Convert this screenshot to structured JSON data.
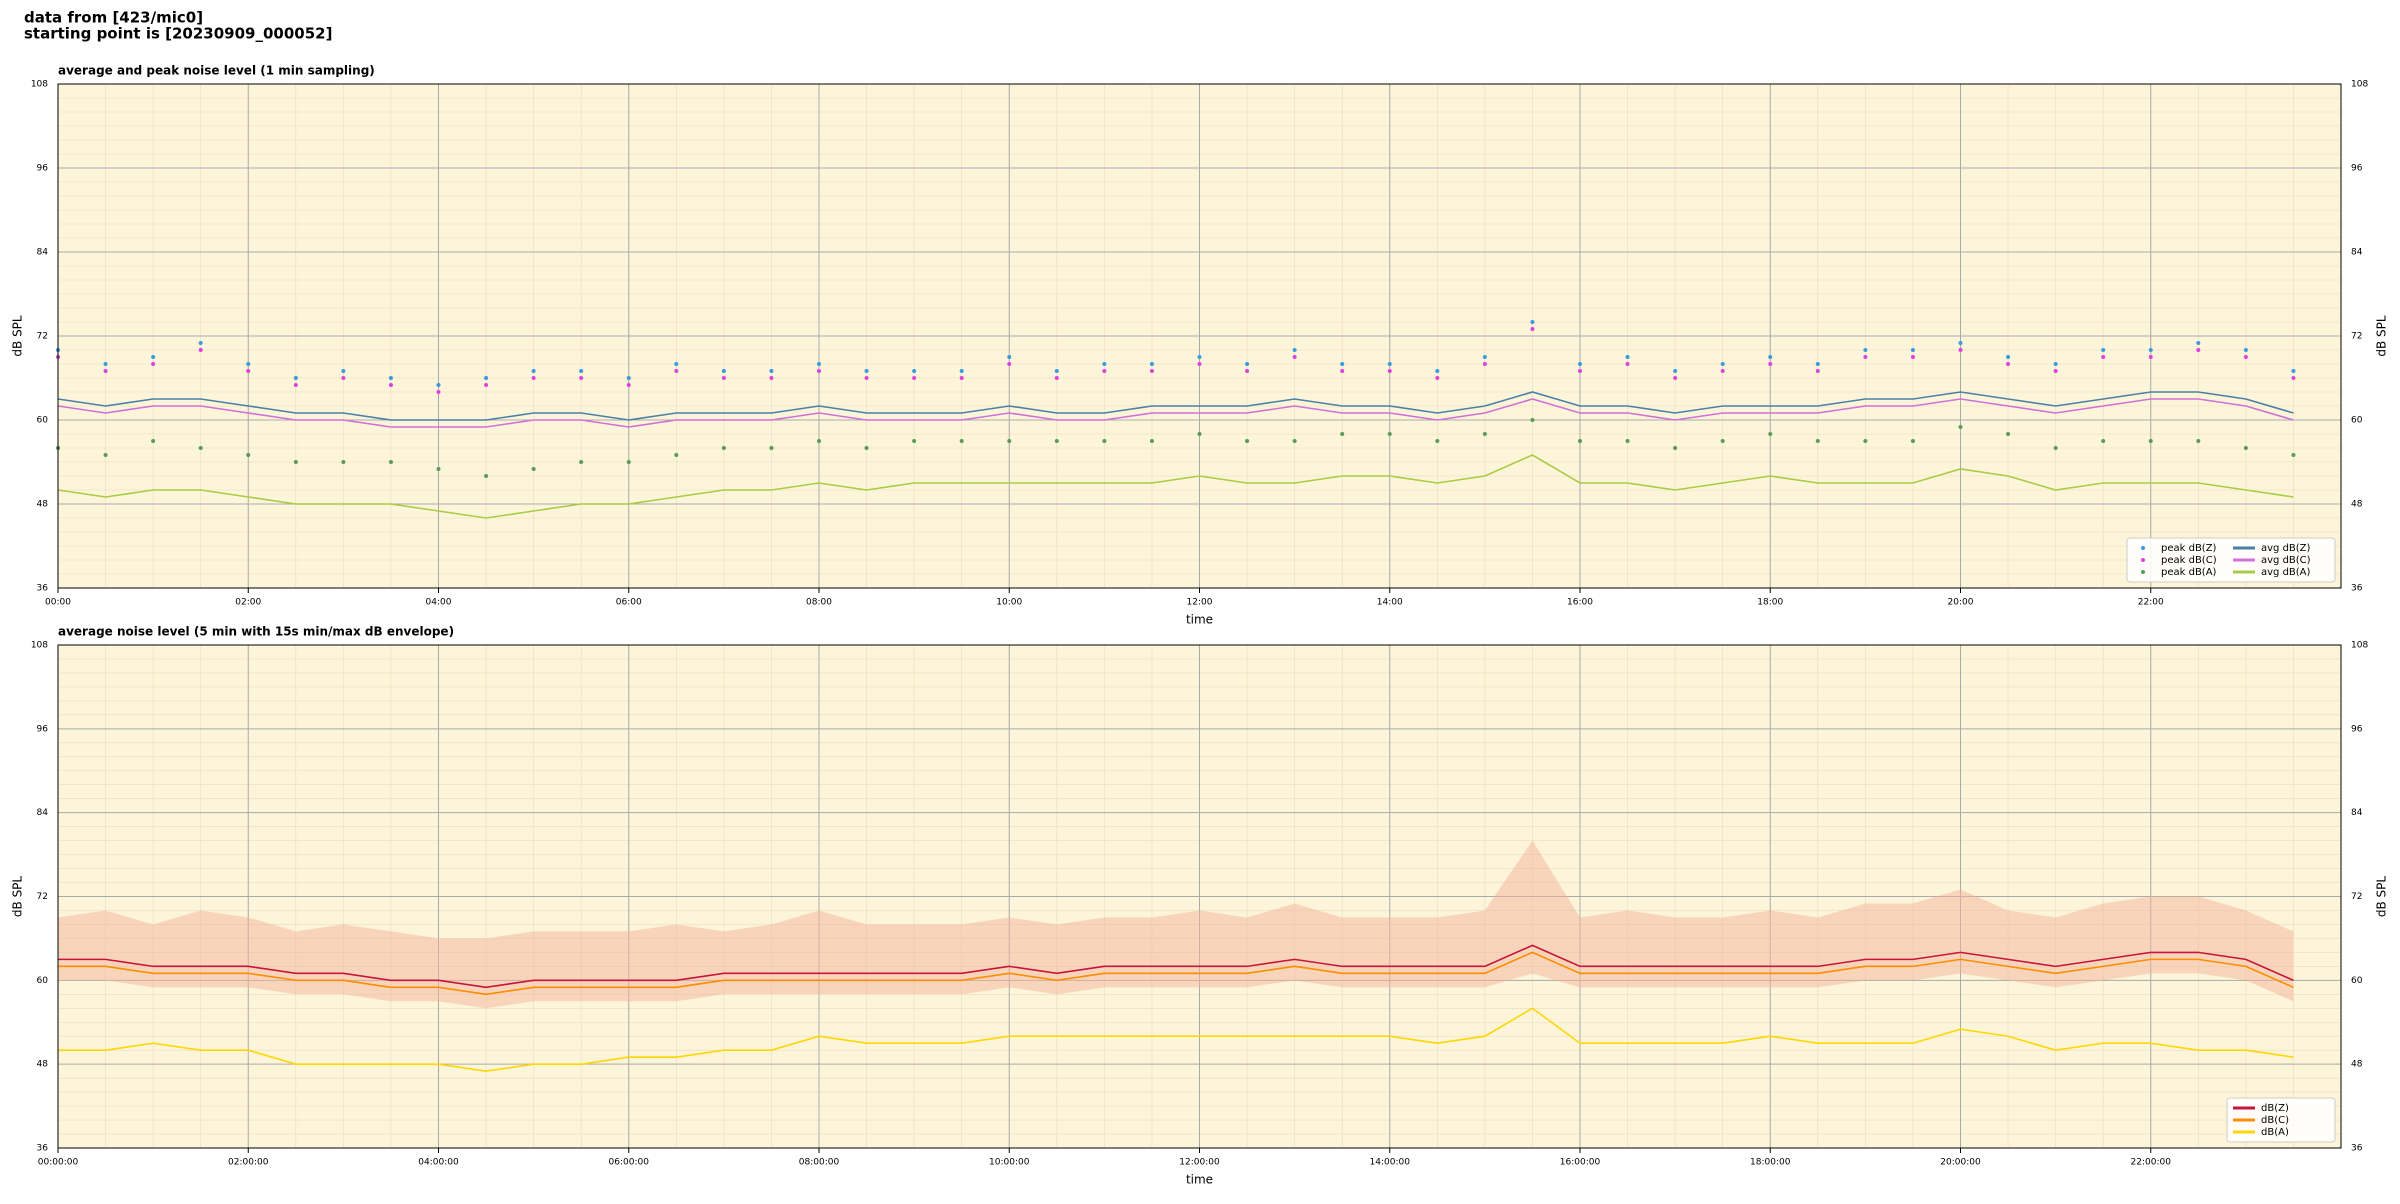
{
  "header": {
    "line1": "data from [423/mic0]",
    "line2": "starting point is [20230909_000052]"
  },
  "chart_data": [
    {
      "type": "line",
      "title": "average and peak noise level (1 min sampling)",
      "x_label": "time",
      "y_label": "dB SPL",
      "xlim": [
        "00:00",
        "24:00"
      ],
      "xticks": [
        "00:00",
        "02:00",
        "04:00",
        "06:00",
        "08:00",
        "10:00",
        "12:00",
        "14:00",
        "16:00",
        "18:00",
        "20:00",
        "22:00"
      ],
      "ylim": [
        36,
        108
      ],
      "yticks": [
        36,
        48,
        60,
        72,
        84,
        96,
        108
      ],
      "grid": true,
      "legend": "lower right",
      "x": [
        "00:00",
        "00:30",
        "01:00",
        "01:30",
        "02:00",
        "02:30",
        "03:00",
        "03:30",
        "04:00",
        "04:30",
        "05:00",
        "05:30",
        "06:00",
        "06:30",
        "07:00",
        "07:30",
        "08:00",
        "08:30",
        "09:00",
        "09:30",
        "10:00",
        "10:30",
        "11:00",
        "11:30",
        "12:00",
        "12:30",
        "13:00",
        "13:30",
        "14:00",
        "14:30",
        "15:00",
        "15:30",
        "16:00",
        "16:30",
        "17:00",
        "17:30",
        "18:00",
        "18:30",
        "19:00",
        "19:30",
        "20:00",
        "20:30",
        "21:00",
        "21:30",
        "22:00",
        "22:30",
        "23:00",
        "23:30"
      ],
      "series": [
        {
          "name": "peak dB(Z)",
          "kind": "scatter",
          "color": "#3a9be0",
          "values": [
            70,
            68,
            69,
            71,
            68,
            66,
            67,
            66,
            65,
            66,
            67,
            67,
            66,
            68,
            67,
            67,
            68,
            67,
            67,
            67,
            69,
            67,
            68,
            68,
            69,
            68,
            70,
            68,
            68,
            67,
            69,
            74,
            68,
            69,
            67,
            68,
            69,
            68,
            70,
            70,
            71,
            69,
            68,
            70,
            70,
            71,
            70,
            67
          ]
        },
        {
          "name": "peak dB(C)",
          "kind": "scatter",
          "color": "#e040e0",
          "values": [
            69,
            67,
            68,
            70,
            67,
            65,
            66,
            65,
            64,
            65,
            66,
            66,
            65,
            67,
            66,
            66,
            67,
            66,
            66,
            66,
            68,
            66,
            67,
            67,
            68,
            67,
            69,
            67,
            67,
            66,
            68,
            73,
            67,
            68,
            66,
            67,
            68,
            67,
            69,
            69,
            70,
            68,
            67,
            69,
            69,
            70,
            69,
            66
          ]
        },
        {
          "name": "peak dB(A)",
          "kind": "scatter",
          "color": "#5a9a5a",
          "values": [
            56,
            55,
            57,
            56,
            55,
            54,
            54,
            54,
            53,
            52,
            53,
            54,
            54,
            55,
            56,
            56,
            57,
            56,
            57,
            57,
            57,
            57,
            57,
            57,
            58,
            57,
            57,
            58,
            58,
            57,
            58,
            60,
            57,
            57,
            56,
            57,
            58,
            57,
            57,
            57,
            59,
            58,
            56,
            57,
            57,
            57,
            56,
            55
          ]
        },
        {
          "name": "avg dB(Z)",
          "kind": "line",
          "color": "#4a80a8",
          "values": [
            63,
            62,
            63,
            63,
            62,
            61,
            61,
            60,
            60,
            60,
            61,
            61,
            60,
            61,
            61,
            61,
            62,
            61,
            61,
            61,
            62,
            61,
            61,
            62,
            62,
            62,
            63,
            62,
            62,
            61,
            62,
            64,
            62,
            62,
            61,
            62,
            62,
            62,
            63,
            63,
            64,
            63,
            62,
            63,
            64,
            64,
            63,
            61
          ]
        },
        {
          "name": "avg dB(C)",
          "kind": "line",
          "color": "#d070d8",
          "values": [
            62,
            61,
            62,
            62,
            61,
            60,
            60,
            59,
            59,
            59,
            60,
            60,
            59,
            60,
            60,
            60,
            61,
            60,
            60,
            60,
            61,
            60,
            60,
            61,
            61,
            61,
            62,
            61,
            61,
            60,
            61,
            63,
            61,
            61,
            60,
            61,
            61,
            61,
            62,
            62,
            63,
            62,
            61,
            62,
            63,
            63,
            62,
            60
          ]
        },
        {
          "name": "avg dB(A)",
          "kind": "line",
          "color": "#a8cc44",
          "values": [
            50,
            49,
            50,
            50,
            49,
            48,
            48,
            48,
            47,
            46,
            47,
            48,
            48,
            49,
            50,
            50,
            51,
            50,
            51,
            51,
            51,
            51,
            51,
            51,
            52,
            51,
            51,
            52,
            52,
            51,
            52,
            55,
            51,
            51,
            50,
            51,
            52,
            51,
            51,
            51,
            53,
            52,
            50,
            51,
            51,
            51,
            50,
            49
          ]
        }
      ]
    },
    {
      "type": "line",
      "title": "average noise level (5 min with 15s min/max dB envelope)",
      "x_label": "time",
      "y_label": "dB SPL",
      "xlim": [
        "00:00:00",
        "24:00:00"
      ],
      "xticks": [
        "00:00:00",
        "02:00:00",
        "04:00:00",
        "06:00:00",
        "08:00:00",
        "10:00:00",
        "12:00:00",
        "14:00:00",
        "16:00:00",
        "18:00:00",
        "20:00:00",
        "22:00:00"
      ],
      "ylim": [
        36,
        108
      ],
      "yticks": [
        36,
        48,
        60,
        72,
        84,
        96,
        108
      ],
      "grid": true,
      "legend": "lower right",
      "x": [
        "00:00:00",
        "00:30:00",
        "01:00:00",
        "01:30:00",
        "02:00:00",
        "02:30:00",
        "03:00:00",
        "03:30:00",
        "04:00:00",
        "04:30:00",
        "05:00:00",
        "05:30:00",
        "06:00:00",
        "06:30:00",
        "07:00:00",
        "07:30:00",
        "08:00:00",
        "08:30:00",
        "09:00:00",
        "09:30:00",
        "10:00:00",
        "10:30:00",
        "11:00:00",
        "11:30:00",
        "12:00:00",
        "12:30:00",
        "13:00:00",
        "13:30:00",
        "14:00:00",
        "14:30:00",
        "15:00:00",
        "15:30:00",
        "16:00:00",
        "16:30:00",
        "17:00:00",
        "17:30:00",
        "18:00:00",
        "18:30:00",
        "19:00:00",
        "19:30:00",
        "20:00:00",
        "20:30:00",
        "21:00:00",
        "21:30:00",
        "22:00:00",
        "22:30:00",
        "23:00:00",
        "23:30:00"
      ],
      "envelope": {
        "color": "#f4b49c",
        "min": [
          60,
          60,
          59,
          59,
          59,
          58,
          58,
          57,
          57,
          56,
          57,
          57,
          57,
          57,
          58,
          58,
          58,
          58,
          58,
          58,
          59,
          58,
          59,
          59,
          59,
          59,
          60,
          59,
          59,
          59,
          59,
          61,
          59,
          59,
          59,
          59,
          59,
          59,
          60,
          60,
          61,
          60,
          59,
          60,
          61,
          61,
          60,
          57
        ],
        "max": [
          69,
          70,
          68,
          70,
          69,
          67,
          68,
          67,
          66,
          66,
          67,
          67,
          67,
          68,
          67,
          68,
          70,
          68,
          68,
          68,
          69,
          68,
          69,
          69,
          70,
          69,
          71,
          69,
          69,
          69,
          70,
          80,
          69,
          70,
          69,
          69,
          70,
          69,
          71,
          71,
          73,
          70,
          69,
          71,
          72,
          72,
          70,
          67
        ]
      },
      "series": [
        {
          "name": "dB(Z)",
          "kind": "line",
          "color": "#c8143c",
          "values": [
            63,
            63,
            62,
            62,
            62,
            61,
            61,
            60,
            60,
            59,
            60,
            60,
            60,
            60,
            61,
            61,
            61,
            61,
            61,
            61,
            62,
            61,
            62,
            62,
            62,
            62,
            63,
            62,
            62,
            62,
            62,
            65,
            62,
            62,
            62,
            62,
            62,
            62,
            63,
            63,
            64,
            63,
            62,
            63,
            64,
            64,
            63,
            60
          ]
        },
        {
          "name": "dB(C)",
          "kind": "line",
          "color": "#ff8c00",
          "values": [
            62,
            62,
            61,
            61,
            61,
            60,
            60,
            59,
            59,
            58,
            59,
            59,
            59,
            59,
            60,
            60,
            60,
            60,
            60,
            60,
            61,
            60,
            61,
            61,
            61,
            61,
            62,
            61,
            61,
            61,
            61,
            64,
            61,
            61,
            61,
            61,
            61,
            61,
            62,
            62,
            63,
            62,
            61,
            62,
            63,
            63,
            62,
            59
          ]
        },
        {
          "name": "dB(A)",
          "kind": "line",
          "color": "#ffd700",
          "values": [
            50,
            50,
            51,
            50,
            50,
            48,
            48,
            48,
            48,
            47,
            48,
            48,
            49,
            49,
            50,
            50,
            52,
            51,
            51,
            51,
            52,
            52,
            52,
            52,
            52,
            52,
            52,
            52,
            52,
            51,
            52,
            56,
            51,
            51,
            51,
            51,
            52,
            51,
            51,
            51,
            53,
            52,
            50,
            51,
            51,
            50,
            50,
            49
          ]
        }
      ]
    }
  ]
}
